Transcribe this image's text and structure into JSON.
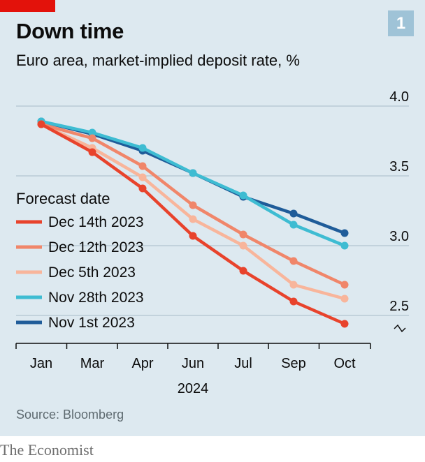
{
  "header": {
    "title": "Down time",
    "subtitle": "Euro area, market-implied deposit rate, %",
    "badge": "1"
  },
  "source": "Source: Bloomberg",
  "footer": "The Economist",
  "colors": {
    "panel_bg": "#dde9f0",
    "brand_red": "#e3120b",
    "badge": "#9fc3d7"
  },
  "chart_data": {
    "type": "line",
    "categories": [
      "Jan",
      "Mar",
      "Apr",
      "Jun",
      "Jul",
      "Sep",
      "Oct"
    ],
    "x_axis_year": "2024",
    "y_ticks": [
      "4.0",
      "3.5",
      "3.0",
      "2.5"
    ],
    "ylim": [
      2.4,
      4.0
    ],
    "y_axis_break": true,
    "grid": true,
    "legend": {
      "title": "Forecast date",
      "placement": "left"
    },
    "series": [
      {
        "name": "Dec 14th 2023",
        "color": "#e8432c",
        "values": [
          3.87,
          3.67,
          3.41,
          3.07,
          2.82,
          2.6,
          2.44
        ]
      },
      {
        "name": "Dec 12th 2023",
        "color": "#f0866a",
        "values": [
          3.87,
          3.77,
          3.57,
          3.29,
          3.08,
          2.89,
          2.72
        ]
      },
      {
        "name": "Dec 5th 2023",
        "color": "#f8b59b",
        "values": [
          3.87,
          3.7,
          3.49,
          3.19,
          3.0,
          2.72,
          2.62
        ]
      },
      {
        "name": "Nov 28th 2023",
        "color": "#3ebcd2",
        "values": [
          3.89,
          3.81,
          3.7,
          3.52,
          3.36,
          3.15,
          3.0
        ]
      },
      {
        "name": "Nov 1st 2023",
        "color": "#1f5c99",
        "values": [
          3.89,
          3.8,
          3.68,
          3.52,
          3.35,
          3.23,
          3.09
        ]
      }
    ]
  }
}
